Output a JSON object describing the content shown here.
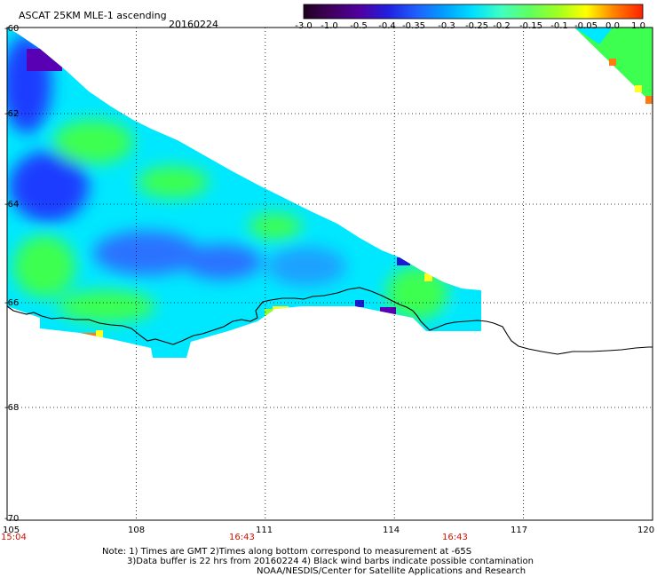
{
  "header": {
    "title": "ASCAT 25KM MLE-1 ascending",
    "date": "20160224"
  },
  "colorbar": {
    "labels": [
      "-3.0",
      "-1.0",
      "-0.5",
      "-0.4",
      "-0.35",
      "-0.3",
      "-0.25",
      "-0.2",
      "-0.15",
      "-0.1",
      "-0.05",
      "0.0",
      "1.0"
    ],
    "colors": [
      "#200020",
      "#400060",
      "#5000a0",
      "#2020e0",
      "#2060ff",
      "#00a0ff",
      "#00e0ff",
      "#40ffc0",
      "#60ff60",
      "#a0ff20",
      "#ffff00",
      "#ff8000",
      "#ff2000"
    ]
  },
  "map": {
    "lat_labels": [
      "-60",
      "-62",
      "-64",
      "-66",
      "-68",
      "-70"
    ],
    "lon_labels": [
      "105",
      "108",
      "111",
      "114",
      "117",
      "120"
    ],
    "time_labels": [
      "15:04",
      "16:43",
      "16:43"
    ],
    "lon_range": [
      105,
      120
    ],
    "lat_range": [
      -60,
      -70
    ],
    "field_colors": {
      "deep_blue": "#1e3cff",
      "blue": "#2a72ff",
      "mid_blue": "#1ea0ff",
      "cyan": "#00e8ff",
      "aqua": "#2affd0",
      "green": "#3cff50",
      "lime": "#8cff30",
      "purple": "#5a00b4",
      "navy": "#1a1ad0",
      "orange": "#ff7a10",
      "yellow": "#ffff20"
    },
    "coast_color": "#000000",
    "grid": "dotted"
  },
  "notes": {
    "line1": "Note: 1) Times are GMT 2)Times along bottom correspond to measurement at -65S",
    "line2": "3)Data buffer is 22 hrs from 20160224 4) Black wind barbs indicate possible contamination",
    "line3": "NOAA/NESDIS/Center for Satellite Applications and Research"
  }
}
